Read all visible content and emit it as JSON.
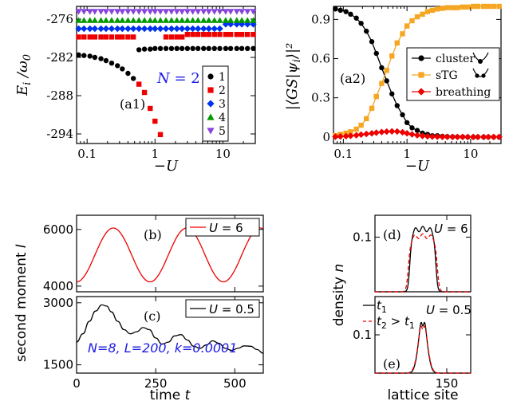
{
  "chart_data": [
    {
      "id": "a1",
      "type": "scatter",
      "panel_label": "(a1)",
      "xlabel": "−U",
      "ylabel": "E_i / ω_0",
      "xscale": "log",
      "xlim": [
        0.07,
        30
      ],
      "ylim": [
        -295.5,
        -274
      ],
      "x_ticks": [
        0.1,
        1,
        10
      ],
      "x_tick_labels": [
        "0.1",
        "1",
        "10"
      ],
      "y_ticks": [
        -294,
        -288,
        -282,
        -276
      ],
      "y_tick_labels": [
        "-294",
        "-288",
        "-282",
        "-276"
      ],
      "annotation": "N = 2",
      "legend_position": "lower-right",
      "series": [
        {
          "name": "1",
          "color": "#000000",
          "marker": "circle",
          "x": [
            0.075,
            0.09,
            0.11,
            0.13,
            0.16,
            0.19,
            0.23,
            0.28,
            0.33,
            0.4,
            0.48,
            0.58,
            0.7,
            0.85,
            1,
            1.2,
            1.45,
            1.75,
            2.1,
            2.5,
            3,
            3.6,
            4.3,
            5.2,
            6.2,
            7.5,
            9,
            11,
            13,
            16,
            19,
            23,
            28
          ],
          "y": [
            -281.6,
            -281.7,
            -281.8,
            -282.0,
            -282.2,
            -282.5,
            -282.9,
            -283.3,
            -283.8,
            -284.5,
            -285.3,
            -280.8,
            -280.7,
            -280.7,
            -280.6,
            -280.6,
            -280.6,
            -280.6,
            -280.6,
            -280.6,
            -280.6,
            -280.6,
            -280.6,
            -280.6,
            -280.6,
            -280.6,
            -280.6,
            -280.6,
            -280.6,
            -280.6,
            -280.6,
            -280.6,
            -280.6
          ]
        },
        {
          "name": "2",
          "color": "#ee0000",
          "marker": "square",
          "x": [
            0.075,
            0.09,
            0.11,
            0.13,
            0.16,
            0.19,
            0.23,
            0.28,
            0.33,
            0.4,
            0.48,
            0.58,
            0.7,
            0.85,
            1,
            1.2,
            1.45,
            1.75,
            2.1,
            2.5,
            3,
            3.6,
            4.3,
            5.2,
            6.2,
            7.5,
            9,
            11,
            13,
            16,
            19,
            23,
            28
          ],
          "y": [
            -278.8,
            -278.8,
            -278.8,
            -278.8,
            -278.8,
            -278.8,
            -278.8,
            -278.8,
            -278.8,
            -278.8,
            -278.8,
            -286.2,
            -287.5,
            -290.0,
            -292.0,
            -294.1,
            -278.8,
            -278.8,
            -278.8,
            -278.8,
            -278.4,
            -278.4,
            -278.4,
            -278.4,
            -278.4,
            -278.4,
            -278.4,
            -278.4,
            -278.4,
            -278.4,
            -278.4,
            -278.4,
            -278.4
          ]
        },
        {
          "name": "3",
          "color": "#0033ee",
          "marker": "diamond",
          "x": [
            0.075,
            0.09,
            0.11,
            0.13,
            0.16,
            0.19,
            0.23,
            0.28,
            0.33,
            0.4,
            0.48,
            0.58,
            0.7,
            0.85,
            1,
            1.2,
            1.45,
            1.75,
            2.1,
            2.5,
            3,
            3.6,
            4.3,
            5.2,
            6.2,
            7.5,
            9,
            11,
            13,
            16,
            19,
            23,
            28
          ],
          "y": [
            -277.5,
            -277.5,
            -277.5,
            -277.5,
            -277.5,
            -277.5,
            -277.5,
            -277.5,
            -277.5,
            -277.5,
            -277.5,
            -277.5,
            -277.5,
            -277.5,
            -277.5,
            -277.5,
            -277.5,
            -277.5,
            -277.5,
            -277.5,
            -277.5,
            -277.5,
            -277.5,
            -277.5,
            -277.5,
            -277.5,
            -277.5,
            -276.8,
            -276.8,
            -276.8,
            -276.8,
            -276.8,
            -276.8
          ]
        },
        {
          "name": "4",
          "color": "#009900",
          "marker": "triangle-up",
          "x": [
            0.075,
            0.09,
            0.11,
            0.13,
            0.16,
            0.19,
            0.23,
            0.28,
            0.33,
            0.4,
            0.48,
            0.58,
            0.7,
            0.85,
            1,
            1.2,
            1.45,
            1.75,
            2.1,
            2.5,
            3,
            3.6,
            4.3,
            5.2,
            6.2,
            7.5,
            9,
            11,
            13,
            16,
            19,
            23,
            28
          ],
          "y": [
            -276.2,
            -276.2,
            -276.2,
            -276.2,
            -276.2,
            -276.2,
            -276.2,
            -276.2,
            -276.2,
            -276.2,
            -276.2,
            -276.2,
            -276.2,
            -276.2,
            -276.2,
            -276.2,
            -276.2,
            -276.2,
            -276.2,
            -276.2,
            -276.2,
            -276.2,
            -276.2,
            -276.2,
            -276.2,
            -276.2,
            -276.2,
            -276.2,
            -276.2,
            -276.2,
            -276.2,
            -276.2,
            -276.2
          ]
        },
        {
          "name": "5",
          "color": "#8844dd",
          "marker": "triangle-down",
          "x": [
            0.075,
            0.09,
            0.11,
            0.13,
            0.16,
            0.19,
            0.23,
            0.28,
            0.33,
            0.4,
            0.48,
            0.58,
            0.7,
            0.85,
            1,
            1.2,
            1.45,
            1.75,
            2.1,
            2.5,
            3,
            3.6,
            4.3,
            5.2,
            6.2,
            7.5,
            9,
            11,
            13,
            16,
            19,
            23,
            28
          ],
          "y": [
            -274.8,
            -274.8,
            -274.8,
            -274.8,
            -274.8,
            -274.8,
            -274.8,
            -274.8,
            -274.8,
            -274.8,
            -274.8,
            -274.8,
            -274.8,
            -274.8,
            -274.8,
            -274.8,
            -274.8,
            -274.8,
            -274.8,
            -274.8,
            -274.8,
            -274.8,
            -274.8,
            -274.8,
            -274.8,
            -274.8,
            -274.8,
            -274.8,
            -274.8,
            -274.8,
            -274.8,
            -274.8,
            -274.8
          ]
        }
      ]
    },
    {
      "id": "a2",
      "type": "line",
      "panel_label": "(a2)",
      "xlabel": "−U",
      "ylabel": "|⟨GS|ψ_i⟩|²",
      "xscale": "log",
      "xlim": [
        0.07,
        30
      ],
      "ylim": [
        -0.05,
        1.0
      ],
      "x_ticks": [
        0.1,
        1,
        10
      ],
      "x_tick_labels": [
        "0.1",
        "1",
        "10"
      ],
      "y_ticks": [
        0,
        0.3,
        0.6,
        0.9
      ],
      "y_tick_labels": [
        "0",
        "0.3",
        "0.6",
        "0.9"
      ],
      "legend_position": "center-right",
      "series": [
        {
          "name": "cluster",
          "color": "#000000",
          "marker": "circle",
          "x": [
            0.075,
            0.09,
            0.11,
            0.13,
            0.16,
            0.19,
            0.23,
            0.28,
            0.33,
            0.4,
            0.48,
            0.58,
            0.7,
            0.85,
            1,
            1.2,
            1.45,
            1.75,
            2.1,
            2.5,
            3,
            3.6,
            4.3,
            5.2,
            6.2,
            7.5,
            9,
            11,
            13,
            16,
            19,
            23,
            28
          ],
          "y": [
            0.98,
            0.97,
            0.96,
            0.94,
            0.91,
            0.87,
            0.81,
            0.73,
            0.64,
            0.53,
            0.43,
            0.33,
            0.24,
            0.17,
            0.11,
            0.07,
            0.05,
            0.03,
            0.02,
            0.01,
            0.01,
            0.005,
            0.003,
            0.002,
            0.001,
            0.001,
            0,
            0,
            0,
            0,
            0,
            0,
            0
          ]
        },
        {
          "name": "sTG",
          "color": "#f5a623",
          "marker": "square",
          "x": [
            0.075,
            0.09,
            0.11,
            0.13,
            0.16,
            0.19,
            0.23,
            0.28,
            0.33,
            0.4,
            0.48,
            0.58,
            0.7,
            0.85,
            1,
            1.2,
            1.45,
            1.75,
            2.1,
            2.5,
            3,
            3.6,
            4.3,
            5.2,
            6.2,
            7.5,
            9,
            11,
            13,
            16,
            19,
            23,
            28
          ],
          "y": [
            0.01,
            0.02,
            0.03,
            0.04,
            0.06,
            0.09,
            0.14,
            0.22,
            0.31,
            0.41,
            0.51,
            0.62,
            0.72,
            0.79,
            0.85,
            0.89,
            0.92,
            0.94,
            0.96,
            0.97,
            0.98,
            0.985,
            0.99,
            0.99,
            0.99,
            0.995,
            0.995,
            1,
            1,
            1,
            1,
            1,
            1
          ]
        },
        {
          "name": "breathing",
          "color": "#ee0000",
          "marker": "diamond",
          "x": [
            0.075,
            0.09,
            0.11,
            0.13,
            0.16,
            0.19,
            0.23,
            0.28,
            0.33,
            0.4,
            0.48,
            0.58,
            0.7,
            0.85,
            1,
            1.2,
            1.45,
            1.75,
            2.1,
            2.5,
            3,
            3.6,
            4.3,
            5.2,
            6.2,
            7.5,
            9,
            11,
            13,
            16,
            19,
            23,
            28
          ],
          "y": [
            0.002,
            0.004,
            0.006,
            0.009,
            0.013,
            0.018,
            0.023,
            0.028,
            0.033,
            0.038,
            0.041,
            0.043,
            0.042,
            0.036,
            0.028,
            0.02,
            0.013,
            0.008,
            0.005,
            0.003,
            0.002,
            0.001,
            0.001,
            0,
            0,
            0,
            0,
            0,
            0,
            0,
            0,
            0,
            0
          ]
        }
      ]
    },
    {
      "id": "b",
      "type": "line",
      "panel_label": "(b)",
      "ylabel": "second moment I",
      "xlim": [
        0,
        590
      ],
      "ylim": [
        3800,
        6500
      ],
      "y_ticks": [
        4000,
        6000
      ],
      "y_tick_labels": [
        "4000",
        "6000"
      ],
      "x_ticks": [
        0,
        250,
        500
      ],
      "series": [
        {
          "name": "U = 6",
          "color": "#ee0000",
          "amplitude": 950,
          "mean": 5100,
          "period": 232,
          "phase": 0
        }
      ]
    },
    {
      "id": "c",
      "type": "line",
      "panel_label": "(c)",
      "xlabel": "time t",
      "xlim": [
        0,
        590
      ],
      "ylim": [
        1300,
        3150
      ],
      "x_ticks": [
        0,
        250,
        500
      ],
      "x_tick_labels": [
        "0",
        "250",
        "500"
      ],
      "y_ticks": [
        1500,
        3000
      ],
      "y_tick_labels": [
        "1500",
        "3000"
      ],
      "annotation": "N=8, L=200, k=0.0001",
      "series": [
        {
          "name": "U = 0.5",
          "color": "#000000",
          "x": [
            0,
            20,
            40,
            60,
            80,
            95,
            110,
            130,
            150,
            170,
            190,
            210,
            230,
            250,
            270,
            290,
            310,
            330,
            350,
            370,
            390,
            410,
            430,
            450,
            470,
            490,
            510,
            530,
            550,
            570,
            590
          ],
          "y": [
            2050,
            2250,
            2550,
            2800,
            2950,
            2920,
            2780,
            2550,
            2350,
            2250,
            2300,
            2400,
            2350,
            2150,
            2000,
            2050,
            2200,
            2230,
            2100,
            1950,
            1900,
            1980,
            2080,
            2020,
            1900,
            1850,
            1900,
            1960,
            1950,
            1870,
            1780
          ]
        }
      ]
    },
    {
      "id": "d",
      "type": "line",
      "panel_label": "(d)",
      "ylabel": "density n",
      "xlim": [
        0,
        200
      ],
      "ylim": [
        0,
        0.14
      ],
      "y_ticks": [
        0.1
      ],
      "y_tick_labels": [
        "0.1"
      ],
      "x_ticks": [
        150
      ],
      "annotation": "U = 6",
      "series": [
        {
          "name": "t_1",
          "color": "#000000",
          "dash": "solid",
          "center": 100,
          "half_width": 27,
          "height": 0.115
        },
        {
          "name": "t_2 > t_1",
          "color": "#ee0000",
          "dash": "dashed",
          "center": 100,
          "half_width": 30,
          "height": 0.102
        }
      ]
    },
    {
      "id": "e",
      "type": "line",
      "panel_label": "(e)",
      "xlabel": "lattice site",
      "xlim": [
        0,
        200
      ],
      "ylim": [
        0,
        0.2
      ],
      "x_ticks": [
        150
      ],
      "x_tick_labels": [
        "150"
      ],
      "y_ticks": [
        0.1
      ],
      "y_tick_labels": [
        "0.1"
      ],
      "annotation": "U = 0.5",
      "legend_position": "top-left",
      "series": [
        {
          "name": "t_1",
          "color": "#000000",
          "dash": "solid",
          "center": 100,
          "half_width": 14,
          "height": 0.14
        },
        {
          "name": "t_2 > t_1",
          "color": "#ee0000",
          "dash": "dashed",
          "center": 100,
          "half_width": 15,
          "height": 0.13
        }
      ]
    }
  ]
}
